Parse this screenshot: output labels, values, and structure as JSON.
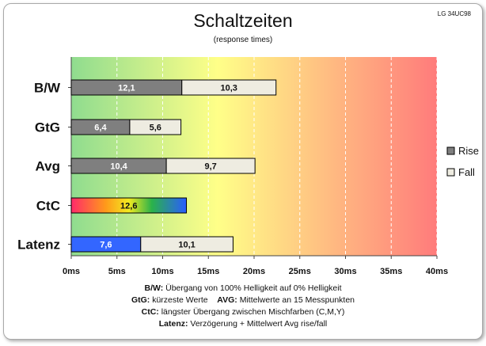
{
  "model_tag": "LG 34UC98",
  "chart_data": {
    "type": "bar",
    "title": "Schaltzeiten",
    "subtitle": "(response times)",
    "orientation": "horizontal",
    "stacked": true,
    "categories": [
      "B/W",
      "GtG",
      "Avg",
      "CtC",
      "Latenz"
    ],
    "series": [
      {
        "name": "Rise",
        "values": [
          12.1,
          6.4,
          10.4,
          null,
          null
        ]
      },
      {
        "name": "Fall",
        "values": [
          10.3,
          5.6,
          9.7,
          null,
          10.1
        ]
      }
    ],
    "extra_bars": [
      {
        "category": "CtC",
        "value": 12.6,
        "label": "12,6",
        "style": "rainbow"
      },
      {
        "category": "Latenz",
        "value": 7.6,
        "label": "7,6",
        "style": "blue"
      }
    ],
    "data_labels": {
      "B/W": [
        "12,1",
        "10,3"
      ],
      "GtG": [
        "6,4",
        "5,6"
      ],
      "Avg": [
        "10,4",
        "9,7"
      ],
      "Latenz": [
        "7,6",
        "10,1"
      ]
    },
    "xlim": [
      0,
      40
    ],
    "xticks": [
      0,
      5,
      10,
      15,
      20,
      25,
      30,
      35,
      40
    ],
    "xtick_labels": [
      "0ms",
      "5ms",
      "10ms",
      "15ms",
      "20ms",
      "25ms",
      "30ms",
      "35ms",
      "40ms"
    ],
    "legend": {
      "position": "right",
      "entries": [
        "Rise",
        "Fall"
      ]
    },
    "grid": true,
    "colors": {
      "rise": "#7f7f7f",
      "fall": "#eeece1",
      "latenz": "#3366ff",
      "background_gradient": [
        "#8fdc8f",
        "#ffff88",
        "#ff7b7b"
      ]
    }
  },
  "notes": [
    {
      "key": "B/W:",
      "text": " Übergang von 100% Helligkeit auf 0% Helligkeit"
    },
    {
      "key": "GtG:",
      "text": " kürzeste  Werte",
      "key2": "AVG:",
      "text2": " Mittelwerte  an 15 Messpunkten"
    },
    {
      "key": "CtC:",
      "text": " längster Übergang  zwischen Mischfarben  (C,M,Y)"
    },
    {
      "key": "Latenz:",
      "text": " Verzögerung  + Mittelwert Avg rise/fall"
    }
  ]
}
